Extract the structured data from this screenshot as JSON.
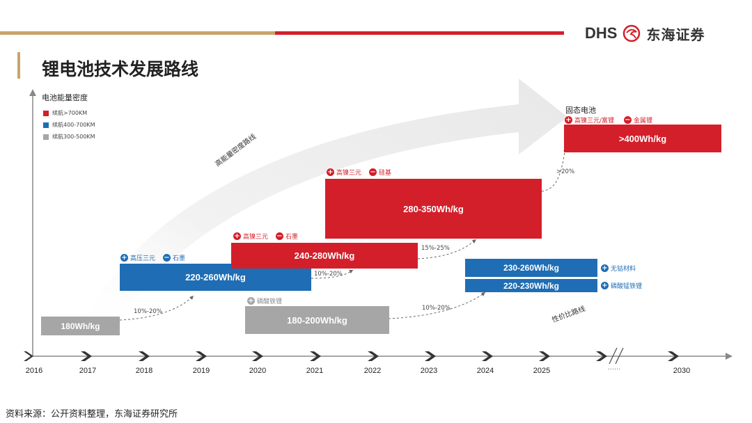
{
  "header": {
    "brand_en": "DHS",
    "brand_cn": "东海证券",
    "title": "锂电池技术发展路线",
    "colors": {
      "red": "#d31f2a",
      "blue": "#1f6db4",
      "gray": "#a6a6a6",
      "gold": "#c9a46a"
    }
  },
  "axis": {
    "y_label": "电池能量密度",
    "years": [
      "2016",
      "2017",
      "2018",
      "2019",
      "2020",
      "2021",
      "2022",
      "2023",
      "2024",
      "2025",
      "2030"
    ],
    "ellipsis": "......"
  },
  "legend": [
    {
      "label": "续航>700KM",
      "color": "#d31f2a"
    },
    {
      "label": "续航400-700KM",
      "color": "#1f6db4"
    },
    {
      "label": "续航300-500KM",
      "color": "#a6a6a6"
    }
  ],
  "routes": {
    "high_energy": "高能量密度路线",
    "cost_performance": "性价比路线"
  },
  "boxes": {
    "b180": "180Wh/kg",
    "b220_260": "220-260Wh/kg",
    "b240_280": "240-280Wh/kg",
    "b280_350": "280-350Wh/kg",
    "b400": ">400Wh/kg",
    "b180_200": "180-200Wh/kg",
    "b230_260": "230-260Wh/kg",
    "b220_230": "220-230Wh/kg"
  },
  "tags": {
    "t2018_cathode": "高压三元",
    "t2018_anode": "石墨",
    "t2020_cathode": "高镍三元",
    "t2020_anode": "石墨",
    "t2021_cathode": "高镍三元",
    "t2021_anode": "硅基",
    "solid_title": "固态电池",
    "solid_cathode": "高镍三元/富锂",
    "solid_anode": "金属锂",
    "lfp": "磷酸铁锂",
    "cobalt_free": "无钴材料",
    "lmfp": "磷酸锰铁锂"
  },
  "growth": {
    "g1": "10%-20%",
    "g2": "10%-20%",
    "g3": "15%-25%",
    "g4": ">20%",
    "g5": "10%-20%"
  },
  "footer": {
    "source": "资料来源：公开资料整理，东海证券研究所"
  }
}
